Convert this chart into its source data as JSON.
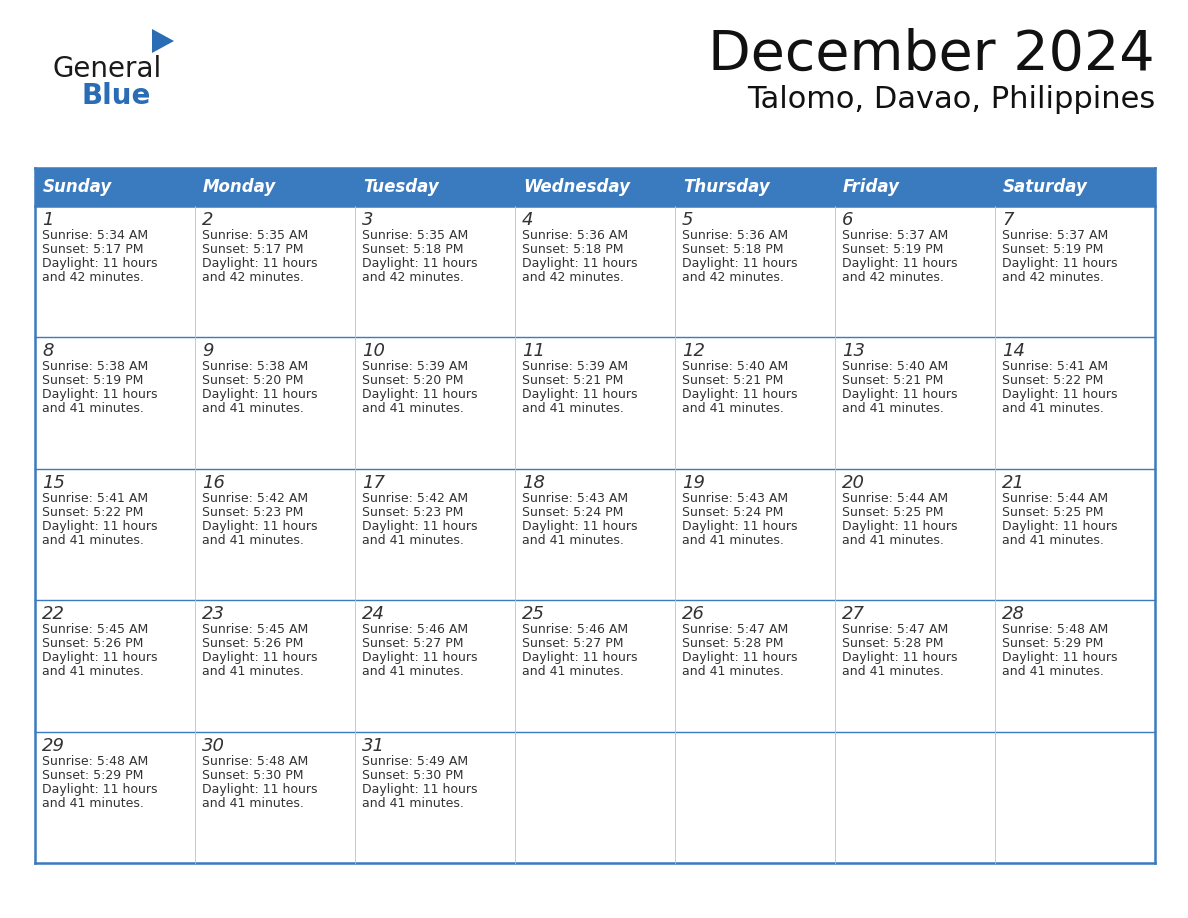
{
  "title": "December 2024",
  "subtitle": "Talomo, Davao, Philippines",
  "header_color": "#3a7abf",
  "header_text_color": "#ffffff",
  "border_color": "#3a7abf",
  "row_separator_color": "#3a7abf",
  "cell_bg_color": "#ffffff",
  "text_color": "#333333",
  "days_of_week": [
    "Sunday",
    "Monday",
    "Tuesday",
    "Wednesday",
    "Thursday",
    "Friday",
    "Saturday"
  ],
  "calendar_data": [
    [
      {
        "day": 1,
        "sunrise": "5:34 AM",
        "sunset": "5:17 PM",
        "daylight_hours": 11,
        "daylight_minutes": 42
      },
      {
        "day": 2,
        "sunrise": "5:35 AM",
        "sunset": "5:17 PM",
        "daylight_hours": 11,
        "daylight_minutes": 42
      },
      {
        "day": 3,
        "sunrise": "5:35 AM",
        "sunset": "5:18 PM",
        "daylight_hours": 11,
        "daylight_minutes": 42
      },
      {
        "day": 4,
        "sunrise": "5:36 AM",
        "sunset": "5:18 PM",
        "daylight_hours": 11,
        "daylight_minutes": 42
      },
      {
        "day": 5,
        "sunrise": "5:36 AM",
        "sunset": "5:18 PM",
        "daylight_hours": 11,
        "daylight_minutes": 42
      },
      {
        "day": 6,
        "sunrise": "5:37 AM",
        "sunset": "5:19 PM",
        "daylight_hours": 11,
        "daylight_minutes": 42
      },
      {
        "day": 7,
        "sunrise": "5:37 AM",
        "sunset": "5:19 PM",
        "daylight_hours": 11,
        "daylight_minutes": 42
      }
    ],
    [
      {
        "day": 8,
        "sunrise": "5:38 AM",
        "sunset": "5:19 PM",
        "daylight_hours": 11,
        "daylight_minutes": 41
      },
      {
        "day": 9,
        "sunrise": "5:38 AM",
        "sunset": "5:20 PM",
        "daylight_hours": 11,
        "daylight_minutes": 41
      },
      {
        "day": 10,
        "sunrise": "5:39 AM",
        "sunset": "5:20 PM",
        "daylight_hours": 11,
        "daylight_minutes": 41
      },
      {
        "day": 11,
        "sunrise": "5:39 AM",
        "sunset": "5:21 PM",
        "daylight_hours": 11,
        "daylight_minutes": 41
      },
      {
        "day": 12,
        "sunrise": "5:40 AM",
        "sunset": "5:21 PM",
        "daylight_hours": 11,
        "daylight_minutes": 41
      },
      {
        "day": 13,
        "sunrise": "5:40 AM",
        "sunset": "5:21 PM",
        "daylight_hours": 11,
        "daylight_minutes": 41
      },
      {
        "day": 14,
        "sunrise": "5:41 AM",
        "sunset": "5:22 PM",
        "daylight_hours": 11,
        "daylight_minutes": 41
      }
    ],
    [
      {
        "day": 15,
        "sunrise": "5:41 AM",
        "sunset": "5:22 PM",
        "daylight_hours": 11,
        "daylight_minutes": 41
      },
      {
        "day": 16,
        "sunrise": "5:42 AM",
        "sunset": "5:23 PM",
        "daylight_hours": 11,
        "daylight_minutes": 41
      },
      {
        "day": 17,
        "sunrise": "5:42 AM",
        "sunset": "5:23 PM",
        "daylight_hours": 11,
        "daylight_minutes": 41
      },
      {
        "day": 18,
        "sunrise": "5:43 AM",
        "sunset": "5:24 PM",
        "daylight_hours": 11,
        "daylight_minutes": 41
      },
      {
        "day": 19,
        "sunrise": "5:43 AM",
        "sunset": "5:24 PM",
        "daylight_hours": 11,
        "daylight_minutes": 41
      },
      {
        "day": 20,
        "sunrise": "5:44 AM",
        "sunset": "5:25 PM",
        "daylight_hours": 11,
        "daylight_minutes": 41
      },
      {
        "day": 21,
        "sunrise": "5:44 AM",
        "sunset": "5:25 PM",
        "daylight_hours": 11,
        "daylight_minutes": 41
      }
    ],
    [
      {
        "day": 22,
        "sunrise": "5:45 AM",
        "sunset": "5:26 PM",
        "daylight_hours": 11,
        "daylight_minutes": 41
      },
      {
        "day": 23,
        "sunrise": "5:45 AM",
        "sunset": "5:26 PM",
        "daylight_hours": 11,
        "daylight_minutes": 41
      },
      {
        "day": 24,
        "sunrise": "5:46 AM",
        "sunset": "5:27 PM",
        "daylight_hours": 11,
        "daylight_minutes": 41
      },
      {
        "day": 25,
        "sunrise": "5:46 AM",
        "sunset": "5:27 PM",
        "daylight_hours": 11,
        "daylight_minutes": 41
      },
      {
        "day": 26,
        "sunrise": "5:47 AM",
        "sunset": "5:28 PM",
        "daylight_hours": 11,
        "daylight_minutes": 41
      },
      {
        "day": 27,
        "sunrise": "5:47 AM",
        "sunset": "5:28 PM",
        "daylight_hours": 11,
        "daylight_minutes": 41
      },
      {
        "day": 28,
        "sunrise": "5:48 AM",
        "sunset": "5:29 PM",
        "daylight_hours": 11,
        "daylight_minutes": 41
      }
    ],
    [
      {
        "day": 29,
        "sunrise": "5:48 AM",
        "sunset": "5:29 PM",
        "daylight_hours": 11,
        "daylight_minutes": 41
      },
      {
        "day": 30,
        "sunrise": "5:48 AM",
        "sunset": "5:30 PM",
        "daylight_hours": 11,
        "daylight_minutes": 41
      },
      {
        "day": 31,
        "sunrise": "5:49 AM",
        "sunset": "5:30 PM",
        "daylight_hours": 11,
        "daylight_minutes": 41
      },
      null,
      null,
      null,
      null
    ]
  ],
  "logo_general_color": "#1a1a1a",
  "logo_blue_color": "#2a6db5",
  "logo_triangle_color": "#2a6db5",
  "title_fontsize": 40,
  "subtitle_fontsize": 22,
  "header_fontsize": 12,
  "day_num_fontsize": 13,
  "cell_text_fontsize": 9
}
